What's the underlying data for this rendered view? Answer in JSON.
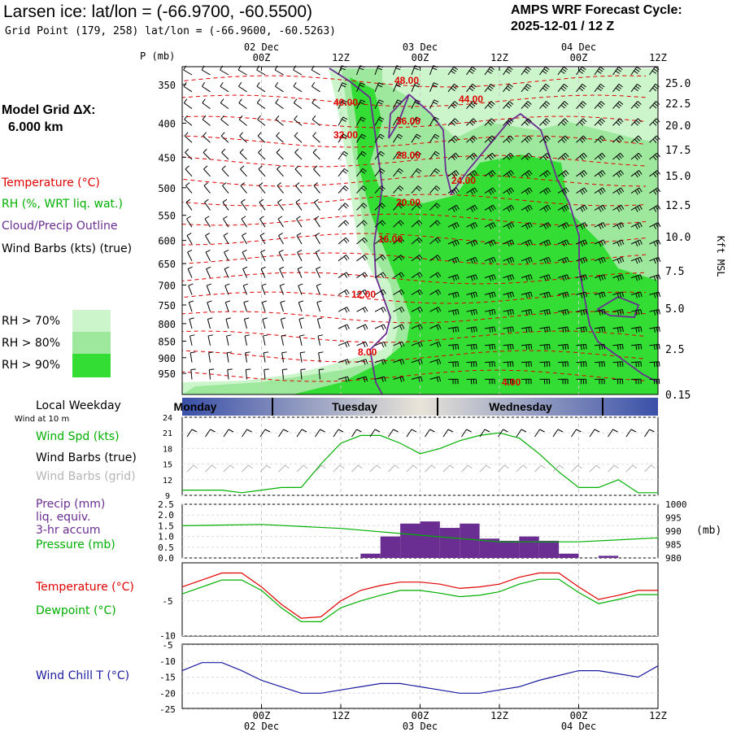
{
  "header": {
    "title": "Larsen ice:  lat/lon = (-66.9700, -60.5500)",
    "subtitle": "Grid Point (179, 258) lat/lon = (-66.9600, -60.5263)",
    "cycle_line1": "AMPS WRF Forecast Cycle:",
    "cycle_line2": "2025-12-01 / 12  Z"
  },
  "legend": {
    "grid_title": "Model Grid ΔX:",
    "grid_value": "6.000 km",
    "temperature": "Temperature (°C)",
    "rh": "RH (%, WRT liq. wat.)",
    "cloud": "Cloud/Precip Outline",
    "wind": "Wind Barbs (kts) (true)",
    "rh70": "RH > 70%",
    "rh80": "RH > 80%",
    "rh90": "RH > 90%",
    "local_weekday": "Local Weekday",
    "wind10m": "Wind at 10 m",
    "wind_spd": "Wind Spd (kts)",
    "barbs_true": "Wind Barbs (true)",
    "barbs_grid": "Wind Barbs (grid)",
    "precip1": "Precip (mm)",
    "precip2": "liq. equiv.",
    "precip3": "3-hr accum",
    "pressure": "Pressure (mb)",
    "pressure_unit": "(mb)",
    "temp2": "Temperature (°C)",
    "dewpoint": "Dewpoint (°C)",
    "windchill": "Wind Chill T (°C)"
  },
  "colors": {
    "temperature": "#e00000",
    "rh": "#00b000",
    "cloud": "#6a2d91",
    "wind": "#000000",
    "precip": "#6a2d91",
    "pressure": "#00b000",
    "windchill": "#1a1aa0",
    "grid_barbs": "#b4b4b4",
    "rh70": "#ccf5cc",
    "rh80": "#9ee89e",
    "rh90": "#33dd33"
  },
  "chart_data": [
    {
      "type": "heatmap",
      "description_of_axes": "time-height cross section",
      "x_axis": {
        "ticks": [
          "00Z",
          "12Z",
          "00Z",
          "12Z",
          "00Z",
          "12Z"
        ],
        "date_labels": [
          "02 Dec",
          "03 Dec",
          "04 Dec"
        ],
        "xlim_hours": [
          0,
          72
        ]
      },
      "y_axis": {
        "label": "P (mb)",
        "ticks": [
          350,
          400,
          450,
          500,
          550,
          600,
          650,
          700,
          750,
          800,
          850,
          900,
          950
        ]
      },
      "right_axis": {
        "label": "Kft MSL",
        "ticks": [
          "25.0",
          "22.5",
          "20.0",
          "17.5",
          "15.0",
          "12.5",
          "10.0",
          "7.5",
          "5.0",
          "2.5",
          "0.15"
        ]
      },
      "temperature_contours": [
        "48.00",
        "44.00",
        "40.00",
        "36.00",
        "32.00",
        "28.00",
        "24.00",
        "20.00",
        "16.00",
        "12.00",
        "8.00",
        "4.00"
      ]
    },
    {
      "type": "line",
      "weekdays": [
        "Monday",
        "Tuesday",
        "Wednesday"
      ],
      "y_ticks": [
        "24",
        "21",
        "18",
        "15",
        "12",
        "9"
      ],
      "ylim": [
        9,
        24
      ],
      "x_hours": [
        0,
        6,
        9,
        12,
        15,
        18,
        21,
        24,
        27,
        30,
        33,
        36,
        39,
        42,
        45,
        48,
        51,
        54,
        57,
        60,
        63,
        66,
        69,
        72
      ],
      "series": [
        {
          "name": "Wind Spd (kts)",
          "values": [
            10,
            10,
            9.5,
            10,
            10.5,
            10.5,
            15,
            19,
            20.5,
            20.5,
            19,
            17,
            18,
            19.5,
            20.5,
            21,
            20,
            17,
            13.5,
            10.5,
            10.5,
            12,
            9.5,
            9.5
          ]
        }
      ]
    },
    {
      "type": "bar",
      "y_ticks_left": [
        "2.5",
        "2.0",
        "1.5",
        "1.0",
        "0.5",
        "0.0"
      ],
      "y_ticks_right": [
        "1000",
        "995",
        "990",
        "985",
        "980"
      ],
      "ylim_precip": [
        0,
        2.5
      ],
      "ylim_pressure": [
        980,
        1000
      ],
      "bar_hours": [
        30,
        33,
        36,
        39,
        42,
        45,
        48,
        51,
        54,
        57,
        60,
        63,
        66,
        69,
        72
      ],
      "bar_values": [
        0.2,
        1.0,
        1.6,
        1.7,
        1.4,
        1.6,
        0.9,
        0.8,
        1.0,
        0.8,
        0.2,
        0.0,
        0.1,
        0.0,
        0.0
      ],
      "pressure_x": [
        0,
        12,
        24,
        36,
        48,
        60,
        72
      ],
      "pressure_values": [
        992,
        992.5,
        991,
        988.5,
        986,
        986,
        987.5
      ]
    },
    {
      "type": "line",
      "y_ticks": [
        "-5",
        "-10"
      ],
      "ylim": [
        -10,
        0
      ],
      "x_hours": [
        0,
        6,
        9,
        12,
        15,
        18,
        21,
        24,
        27,
        30,
        33,
        36,
        39,
        42,
        45,
        48,
        51,
        54,
        57,
        60,
        63,
        66,
        69,
        72
      ],
      "series": [
        {
          "name": "Temperature (°C)",
          "values": [
            -3,
            -1,
            -1,
            -3,
            -5.5,
            -7.5,
            -7.3,
            -5,
            -3.5,
            -2.8,
            -2.3,
            -2.3,
            -2.6,
            -3.2,
            -3,
            -2.6,
            -1.6,
            -1,
            -1,
            -3,
            -4.8,
            -4.2,
            -3.5,
            -3.5
          ]
        },
        {
          "name": "Dewpoint (°C)",
          "values": [
            -4,
            -2,
            -2,
            -3.5,
            -6,
            -8,
            -8,
            -6,
            -5,
            -4.2,
            -3.5,
            -3.5,
            -3.9,
            -4.4,
            -4.2,
            -3.7,
            -2.6,
            -1.9,
            -1.9,
            -3.8,
            -5.4,
            -4.8,
            -4.1,
            -4.1
          ]
        }
      ]
    },
    {
      "type": "line",
      "y_ticks": [
        "-5",
        "-10",
        "-15",
        "-20",
        "-25"
      ],
      "ylim": [
        -25,
        -5
      ],
      "x_hours": [
        0,
        3,
        6,
        9,
        12,
        15,
        18,
        21,
        24,
        27,
        30,
        33,
        36,
        39,
        42,
        45,
        48,
        51,
        54,
        57,
        60,
        63,
        66,
        69,
        72
      ],
      "series": [
        {
          "name": "Wind Chill T (°C)",
          "values": [
            -13,
            -10.5,
            -10.5,
            -13,
            -16,
            -18,
            -20,
            -20,
            -19,
            -18,
            -17,
            -17,
            -18,
            -19,
            -20,
            -20,
            -19,
            -18,
            -16,
            -14.5,
            -13,
            -13,
            -14,
            -15,
            -11.5
          ]
        }
      ]
    }
  ]
}
